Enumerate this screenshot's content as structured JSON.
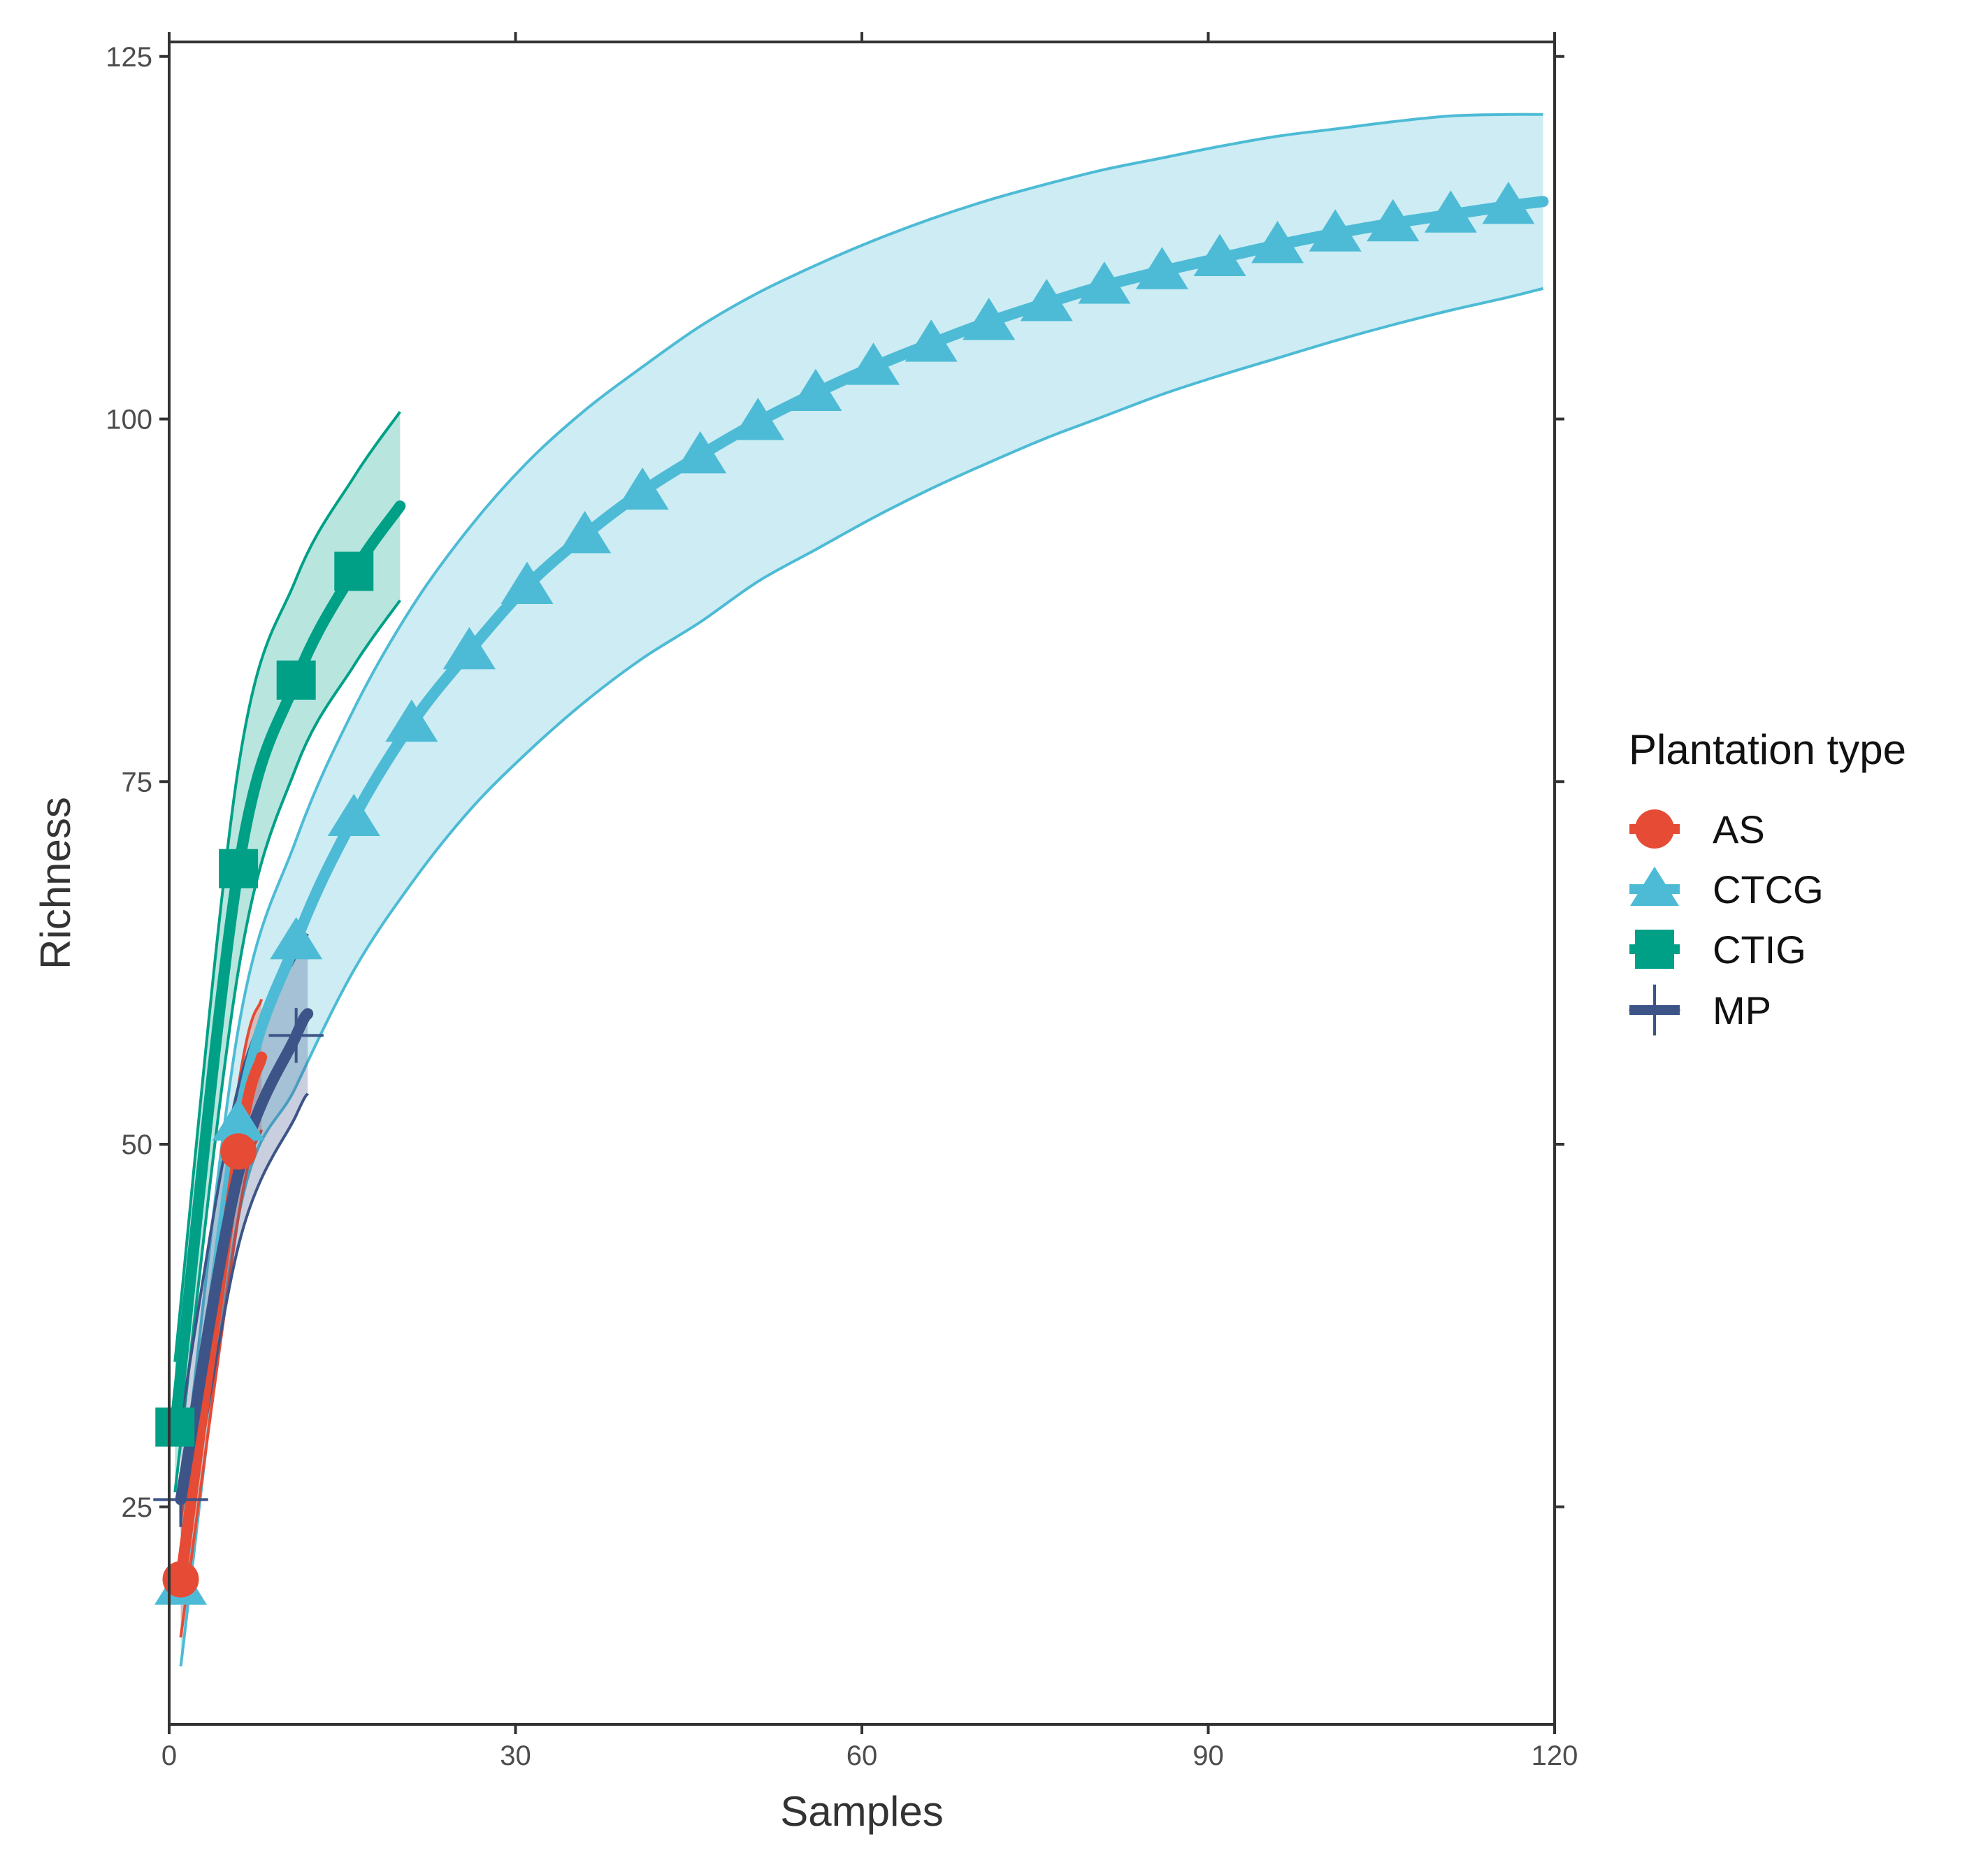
{
  "chart_data": {
    "type": "line",
    "title": "",
    "xlabel": "Samples",
    "ylabel": "Richness",
    "xlim": [
      0,
      120
    ],
    "ylim": [
      10,
      126
    ],
    "xticks": [
      0,
      30,
      60,
      90,
      120
    ],
    "yticks": [
      25,
      50,
      75,
      100,
      125
    ],
    "grid": false,
    "legend": {
      "title": "Plantation type",
      "position": "right"
    },
    "series": [
      {
        "name": "AS",
        "color": "#E64B35",
        "marker": "circle",
        "x": [
          1,
          6,
          8
        ],
        "y": [
          20,
          49.5,
          56
        ],
        "lower": [
          16,
          45,
          51
        ],
        "upper": [
          24,
          54,
          60
        ],
        "marker_x": [
          1,
          6
        ],
        "marker_y": [
          20,
          49.5
        ]
      },
      {
        "name": "CTCG",
        "color": "#4DBBD5",
        "marker": "triangle",
        "x": [
          1,
          6,
          11,
          16,
          21,
          26,
          31,
          36,
          41,
          46,
          51,
          56,
          61,
          66,
          71,
          76,
          81,
          86,
          91,
          96,
          101,
          106,
          111,
          116,
          119
        ],
        "y": [
          19.5,
          51.5,
          64,
          72.5,
          79,
          84,
          88.5,
          92,
          95,
          97.5,
          99.8,
          101.8,
          103.6,
          105.2,
          106.7,
          108,
          109.2,
          110.2,
          111.1,
          112,
          112.8,
          113.5,
          114.1,
          114.7,
          115
        ],
        "lower": [
          14,
          45,
          54,
          62,
          68,
          73,
          77,
          80.5,
          83.5,
          86,
          88.8,
          91,
          93.2,
          95.2,
          97,
          98.7,
          100.2,
          101.7,
          103,
          104.2,
          105.4,
          106.5,
          107.5,
          108.4,
          109
        ],
        "upper": [
          25,
          58,
          71,
          80,
          87,
          92.5,
          97,
          100.6,
          103.6,
          106.4,
          108.7,
          110.6,
          112.3,
          113.8,
          115.1,
          116.2,
          117.2,
          118,
          118.8,
          119.5,
          120,
          120.5,
          120.9,
          121,
          121
        ],
        "marker_x": [
          1,
          6,
          11,
          16,
          21,
          26,
          31,
          36,
          41,
          46,
          51,
          56,
          61,
          66,
          71,
          76,
          81,
          86,
          91,
          96,
          101,
          106,
          111,
          116
        ],
        "marker_y": [
          19.5,
          51.5,
          64,
          72.5,
          79,
          84,
          88.5,
          92,
          95,
          97.5,
          99.8,
          101.8,
          103.6,
          105.2,
          106.7,
          108,
          109.2,
          110.2,
          111.1,
          112,
          112.8,
          113.5,
          114.1,
          114.7
        ]
      },
      {
        "name": "CTIG",
        "color": "#00A087",
        "marker": "square",
        "x": [
          0.5,
          6,
          11,
          16,
          20
        ],
        "y": [
          30.5,
          69,
          82,
          89.5,
          94
        ],
        "lower": [
          26,
          62,
          76,
          83,
          87.5
        ],
        "upper": [
          35,
          76,
          89,
          96,
          100.5
        ],
        "marker_x": [
          0.5,
          6,
          11,
          16
        ],
        "marker_y": [
          30.5,
          69,
          82,
          89.5
        ]
      },
      {
        "name": "MP",
        "color": "#3C5488",
        "marker": "plus",
        "x": [
          1,
          6,
          11,
          12
        ],
        "y": [
          25.5,
          48,
          57.5,
          59
        ],
        "lower": [
          20,
          43,
          52,
          53.5
        ],
        "upper": [
          31,
          54,
          63,
          64.5
        ],
        "marker_x": [
          1,
          11
        ],
        "marker_y": [
          25.5,
          57.5
        ]
      }
    ]
  }
}
